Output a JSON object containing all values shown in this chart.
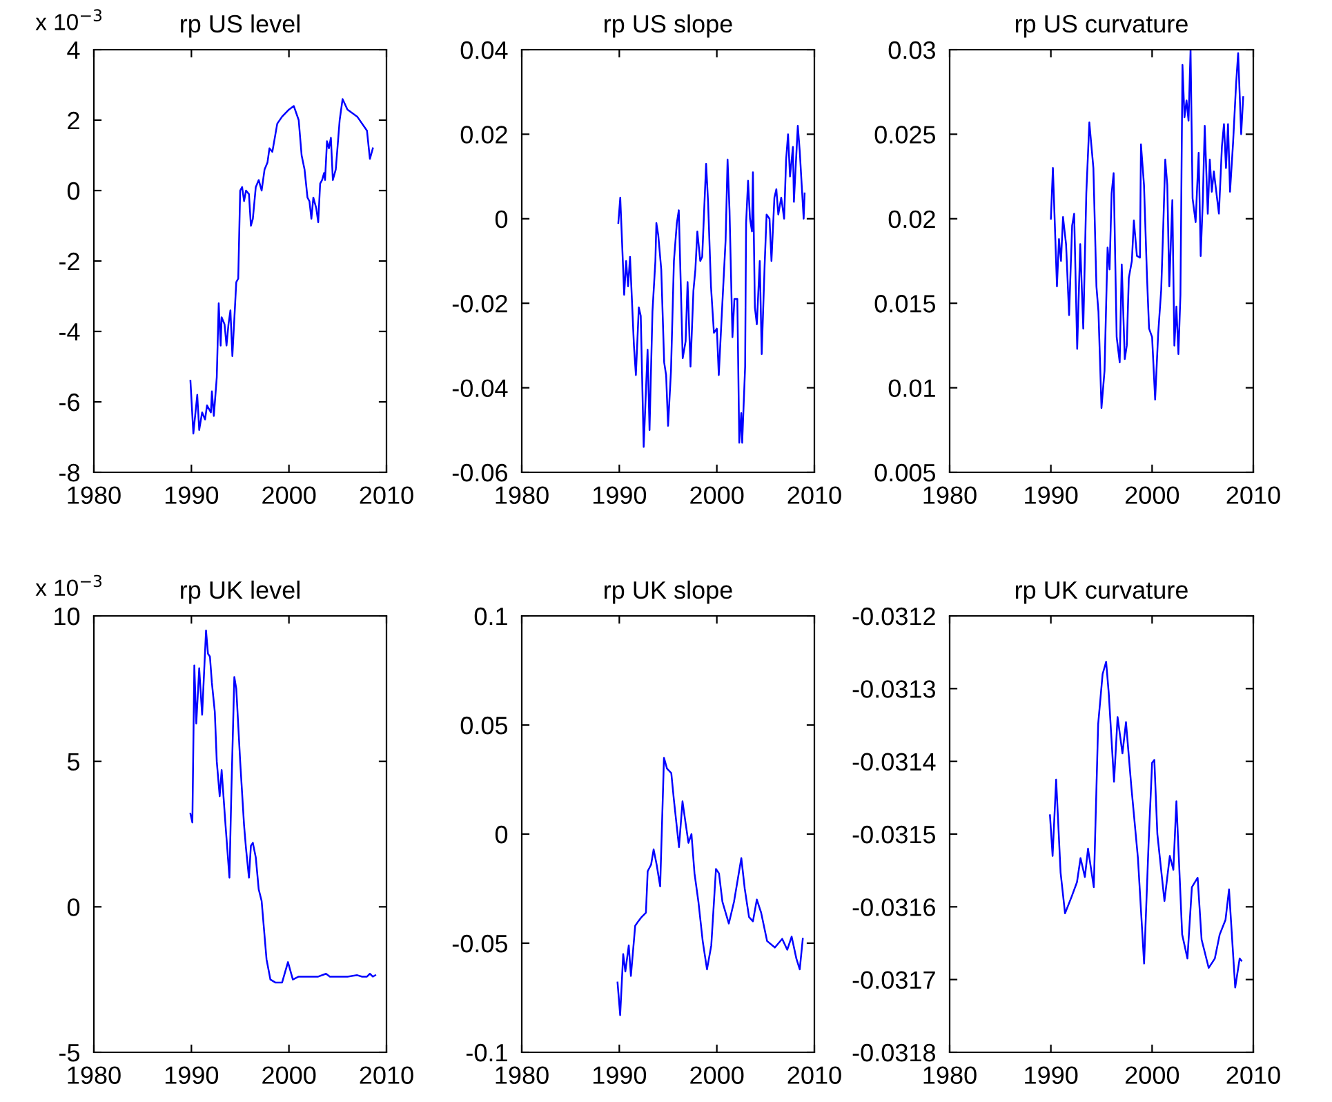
{
  "chart_data": [
    {
      "type": "line",
      "title": "rp US level",
      "annotations": [
        "x 10$^{−3}$"
      ],
      "xlim": [
        1980,
        2010
      ],
      "xticks": [
        1980,
        1990,
        2000,
        2010
      ],
      "ylim": [
        -8,
        4
      ],
      "yticks": [
        -8,
        -6,
        -4,
        -2,
        0,
        2,
        4
      ],
      "x": [
        1989.9,
        1990.2,
        1990.6,
        1990.8,
        1991.1,
        1991.4,
        1991.6,
        1992.0,
        1992.1,
        1992.3,
        1992.6,
        1992.8,
        1993.0,
        1993.1,
        1993.4,
        1993.6,
        1993.8,
        1994.0,
        1994.2,
        1994.6,
        1994.8,
        1995.0,
        1995.2,
        1995.4,
        1995.6,
        1995.9,
        1996.1,
        1996.3,
        1996.6,
        1996.9,
        1997.2,
        1997.5,
        1997.8,
        1998.0,
        1998.3,
        1998.8,
        1999.3,
        2000.0,
        2000.5,
        2001.0,
        2001.3,
        2001.6,
        2001.9,
        2002.1,
        2002.3,
        2002.5,
        2002.8,
        2003.0,
        2003.2,
        2003.4,
        2003.6,
        2003.7,
        2003.9,
        2004.1,
        2004.3,
        2004.5,
        2004.8,
        2005.2,
        2005.5,
        2006.0,
        2007.0,
        2008.0,
        2008.3,
        2008.6
      ],
      "series": [
        {
          "color": "#0000ff",
          "values": [
            -5.4,
            -6.9,
            -5.8,
            -6.8,
            -6.3,
            -6.5,
            -6.1,
            -6.3,
            -5.7,
            -6.4,
            -5.3,
            -3.2,
            -4.4,
            -3.6,
            -3.8,
            -4.4,
            -3.8,
            -3.4,
            -4.7,
            -2.6,
            -2.5,
            0,
            0.1,
            -0.3,
            0,
            -0.1,
            -1.0,
            -0.8,
            0.1,
            0.3,
            0,
            0.6,
            0.8,
            1.2,
            1.1,
            1.9,
            2.1,
            2.3,
            2.4,
            2.0,
            1.0,
            0.6,
            -0.2,
            -0.3,
            -0.8,
            -0.2,
            -0.5,
            -0.9,
            0.2,
            0.3,
            0.5,
            0.3,
            1.4,
            1.2,
            1.5,
            0.3,
            0.6,
            2.0,
            2.6,
            2.3,
            2.1,
            1.7,
            0.9,
            1.2
          ]
        }
      ]
    },
    {
      "type": "line",
      "title": "rp US slope",
      "xlim": [
        1980,
        2010
      ],
      "xticks": [
        1980,
        1990,
        2000,
        2010
      ],
      "ylim": [
        -0.06,
        0.04
      ],
      "yticks": [
        -0.06,
        -0.04,
        -0.02,
        0,
        0.02,
        0.04
      ],
      "x": [
        1989.9,
        1990.1,
        1990.5,
        1990.7,
        1990.9,
        1991.1,
        1991.5,
        1991.7,
        1992.0,
        1992.2,
        1992.5,
        1992.9,
        1993.1,
        1993.4,
        1993.7,
        1993.8,
        1994.0,
        1994.3,
        1994.6,
        1994.8,
        1995.0,
        1995.3,
        1995.6,
        1995.9,
        1996.1,
        1996.5,
        1996.8,
        1997.0,
        1997.3,
        1997.6,
        1997.8,
        1998.0,
        1998.3,
        1998.5,
        1998.9,
        1999.1,
        1999.4,
        1999.7,
        2000.0,
        2000.2,
        2000.5,
        2000.9,
        2001.1,
        2001.3,
        2001.6,
        2001.8,
        2002.1,
        2002.3,
        2002.5,
        2002.6,
        2002.9,
        2003.0,
        2003.2,
        2003.4,
        2003.6,
        2003.7,
        2003.9,
        2004.1,
        2004.4,
        2004.6,
        2004.9,
        2005.1,
        2005.4,
        2005.6,
        2005.9,
        2006.1,
        2006.3,
        2006.6,
        2006.9,
        2007.1,
        2007.3,
        2007.5,
        2007.8,
        2007.9,
        2008.1,
        2008.3,
        2008.5,
        2008.9,
        2009.0
      ],
      "series": [
        {
          "color": "#0000ff",
          "values": [
            -0.001,
            0.005,
            -0.018,
            -0.01,
            -0.016,
            -0.009,
            -0.03,
            -0.037,
            -0.021,
            -0.023,
            -0.054,
            -0.031,
            -0.05,
            -0.022,
            -0.01,
            -0.001,
            -0.004,
            -0.012,
            -0.034,
            -0.037,
            -0.049,
            -0.036,
            -0.01,
            -0.001,
            0.002,
            -0.033,
            -0.029,
            -0.015,
            -0.035,
            -0.017,
            -0.012,
            -0.003,
            -0.01,
            -0.009,
            0.013,
            0.004,
            -0.016,
            -0.027,
            -0.026,
            -0.037,
            -0.023,
            -0.005,
            0.014,
            0.002,
            -0.028,
            -0.019,
            -0.019,
            -0.053,
            -0.046,
            -0.053,
            -0.035,
            -0.001,
            0.009,
            0,
            -0.003,
            0.011,
            -0.021,
            -0.025,
            -0.01,
            -0.032,
            -0.011,
            0.001,
            0,
            -0.01,
            0.005,
            0.007,
            0.001,
            0.005,
            0,
            0.014,
            0.02,
            0.01,
            0.017,
            0.004,
            0.013,
            0.022,
            0.016,
            0,
            0.006
          ]
        }
      ]
    },
    {
      "type": "line",
      "title": "rp US curvature",
      "xlim": [
        1980,
        2010
      ],
      "xticks": [
        1980,
        1990,
        2000,
        2010
      ],
      "ylim": [
        0.005,
        0.03
      ],
      "yticks": [
        0.005,
        0.01,
        0.015,
        0.02,
        0.025,
        0.03
      ],
      "x": [
        1990.0,
        1990.2,
        1990.6,
        1990.8,
        1991.0,
        1991.2,
        1991.5,
        1991.8,
        1992.1,
        1992.3,
        1992.6,
        1992.9,
        1993.2,
        1993.5,
        1993.8,
        1994.2,
        1994.5,
        1994.7,
        1995.0,
        1995.3,
        1995.6,
        1995.8,
        1996.0,
        1996.2,
        1996.5,
        1996.8,
        1997.0,
        1997.3,
        1997.5,
        1997.7,
        1998.0,
        1998.2,
        1998.5,
        1998.8,
        1998.9,
        1999.2,
        1999.5,
        1999.7,
        2000.0,
        2000.3,
        2000.6,
        2000.9,
        2001.1,
        2001.3,
        2001.5,
        2001.7,
        2002.0,
        2002.2,
        2002.4,
        2002.6,
        2002.8,
        2003.0,
        2003.2,
        2003.4,
        2003.6,
        2003.8,
        2004.0,
        2004.3,
        2004.6,
        2004.8,
        2005.0,
        2005.2,
        2005.5,
        2005.7,
        2005.9,
        2006.1,
        2006.6,
        2006.9,
        2007.1,
        2007.3,
        2007.5,
        2007.7,
        2008.0,
        2008.3,
        2008.5,
        2008.8,
        2009.0
      ],
      "series": [
        {
          "color": "#0000ff",
          "values": [
            0.02,
            0.023,
            0.016,
            0.0188,
            0.0175,
            0.0201,
            0.0185,
            0.0143,
            0.0196,
            0.0203,
            0.0123,
            0.0185,
            0.0135,
            0.0215,
            0.0257,
            0.023,
            0.016,
            0.0145,
            0.0088,
            0.011,
            0.0183,
            0.017,
            0.0215,
            0.0227,
            0.013,
            0.0115,
            0.0173,
            0.0117,
            0.0125,
            0.0165,
            0.0175,
            0.0199,
            0.0178,
            0.0177,
            0.0244,
            0.022,
            0.0165,
            0.0135,
            0.013,
            0.0093,
            0.0132,
            0.0158,
            0.0195,
            0.0235,
            0.022,
            0.016,
            0.0211,
            0.0125,
            0.0148,
            0.012,
            0.0155,
            0.0291,
            0.026,
            0.027,
            0.0258,
            0.03,
            0.0212,
            0.0198,
            0.0239,
            0.0178,
            0.0209,
            0.0255,
            0.0203,
            0.0235,
            0.0216,
            0.0228,
            0.0203,
            0.0243,
            0.0256,
            0.023,
            0.0256,
            0.0216,
            0.0245,
            0.028,
            0.0298,
            0.025,
            0.0272
          ]
        }
      ]
    },
    {
      "type": "line",
      "title": "rp UK level",
      "annotations": [
        "x 10$^{−3}$"
      ],
      "xlim": [
        1980,
        2010
      ],
      "xticks": [
        1980,
        1990,
        2000,
        2010
      ],
      "ylim": [
        -5,
        10
      ],
      "yticks": [
        -5,
        0,
        5,
        10
      ],
      "x": [
        1989.9,
        1990.1,
        1990.3,
        1990.5,
        1990.8,
        1991.1,
        1991.5,
        1991.7,
        1991.9,
        1992.1,
        1992.4,
        1992.6,
        1992.9,
        1993.1,
        1993.5,
        1993.9,
        1994.1,
        1994.4,
        1994.6,
        1995.0,
        1995.4,
        1995.6,
        1995.9,
        1996.1,
        1996.3,
        1996.6,
        1996.9,
        1997.2,
        1997.7,
        1998.1,
        1998.6,
        1999.3,
        1999.9,
        2000.4,
        2001.0,
        2002.0,
        2003.0,
        2003.8,
        2004.2,
        2005.0,
        2006.0,
        2007.0,
        2007.5,
        2008.0,
        2008.3,
        2008.6,
        2008.85
      ],
      "series": [
        {
          "color": "#0000ff",
          "values": [
            3.2,
            2.9,
            8.3,
            6.3,
            8.2,
            6.6,
            9.5,
            8.7,
            8.6,
            7.7,
            6.7,
            5.0,
            3.8,
            4.7,
            2.8,
            1.0,
            4.0,
            7.9,
            7.5,
            5.0,
            2.8,
            2.0,
            1.0,
            2.1,
            2.2,
            1.7,
            0.6,
            0.2,
            -1.8,
            -2.5,
            -2.6,
            -2.6,
            -1.9,
            -2.5,
            -2.4,
            -2.4,
            -2.4,
            -2.3,
            -2.4,
            -2.4,
            -2.4,
            -2.35,
            -2.4,
            -2.4,
            -2.3,
            -2.4,
            -2.35
          ]
        }
      ]
    },
    {
      "type": "line",
      "title": "rp UK slope",
      "xlim": [
        1980,
        2010
      ],
      "xticks": [
        1980,
        1990,
        2000,
        2010
      ],
      "ylim": [
        -0.1,
        0.1
      ],
      "yticks": [
        -0.1,
        -0.05,
        0,
        0.05,
        0.1
      ],
      "x": [
        1989.82,
        1990.09,
        1990.4,
        1990.62,
        1990.97,
        1991.19,
        1991.63,
        1991.94,
        1992.29,
        1992.73,
        1992.91,
        1993.26,
        1993.52,
        1993.83,
        1994.19,
        1994.58,
        1994.89,
        1995.33,
        1995.59,
        1996.12,
        1996.48,
        1996.83,
        1997.09,
        1997.4,
        1997.71,
        1998.11,
        1998.55,
        1998.99,
        1999.43,
        1999.91,
        2000.22,
        2000.57,
        2001.23,
        2001.76,
        2002.51,
        2002.86,
        2003.3,
        2003.7,
        2004.1,
        2004.54,
        2005.15,
        2005.95,
        2006.7,
        2007.22,
        2007.67,
        2008.15,
        2008.5,
        2008.81
      ],
      "series": [
        {
          "color": "#0000ff",
          "values": [
            -0.068,
            -0.083,
            -0.055,
            -0.063,
            -0.051,
            -0.065,
            -0.042,
            -0.04,
            -0.038,
            -0.036,
            -0.017,
            -0.014,
            -0.007,
            -0.014,
            -0.024,
            0.035,
            0.03,
            0.028,
            0.016,
            -0.006,
            0.015,
            0.004,
            -0.004,
            0,
            -0.018,
            -0.031,
            -0.049,
            -0.062,
            -0.051,
            -0.016,
            -0.018,
            -0.031,
            -0.041,
            -0.031,
            -0.011,
            -0.025,
            -0.038,
            -0.04,
            -0.03,
            -0.036,
            -0.049,
            -0.052,
            -0.048,
            -0.053,
            -0.047,
            -0.057,
            -0.062,
            -0.048
          ]
        }
      ]
    },
    {
      "type": "line",
      "title": "rp UK curvature",
      "xlim": [
        1980,
        2010
      ],
      "xticks": [
        1980,
        1990,
        2000,
        2010
      ],
      "ylim": [
        -0.0318,
        -0.0312
      ],
      "yticks": [
        -0.0318,
        -0.0317,
        -0.0316,
        -0.0315,
        -0.0314,
        -0.0313,
        -0.0312
      ],
      "x": [
        1989.91,
        1990.17,
        1990.52,
        1990.96,
        1991.4,
        1992.05,
        1992.58,
        1992.93,
        1993.36,
        1993.67,
        1994.24,
        1994.67,
        1995.11,
        1995.46,
        1995.72,
        1996.24,
        1996.59,
        1997.07,
        1997.42,
        1997.95,
        1998.6,
        1999.21,
        1999.65,
        2000.0,
        2000.22,
        2000.52,
        2001.22,
        2001.75,
        2002.1,
        2002.4,
        2002.97,
        2003.49,
        2003.93,
        2004.5,
        2004.89,
        2005.59,
        2006.2,
        2006.68,
        2007.25,
        2007.6,
        2008.21,
        2008.65,
        2008.82
      ],
      "series": [
        {
          "color": "#0000ff",
          "values": [
            -0.031474,
            -0.03153,
            -0.031425,
            -0.031553,
            -0.031609,
            -0.031586,
            -0.031566,
            -0.031533,
            -0.031559,
            -0.03152,
            -0.031573,
            -0.031349,
            -0.03128,
            -0.031263,
            -0.031307,
            -0.031428,
            -0.031339,
            -0.031389,
            -0.031346,
            -0.031435,
            -0.031533,
            -0.031678,
            -0.031514,
            -0.031402,
            -0.031398,
            -0.0315,
            -0.031592,
            -0.03153,
            -0.031549,
            -0.031455,
            -0.031638,
            -0.031671,
            -0.031573,
            -0.03156,
            -0.031645,
            -0.031684,
            -0.031671,
            -0.031638,
            -0.031618,
            -0.031576,
            -0.031711,
            -0.031671,
            -0.031674
          ]
        }
      ]
    }
  ]
}
